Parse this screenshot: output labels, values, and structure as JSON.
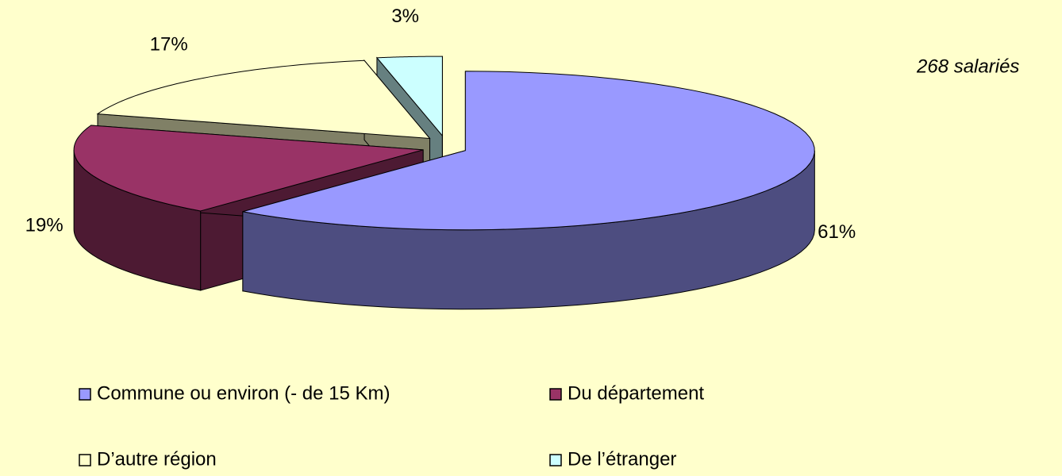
{
  "chart_data": {
    "type": "pie3d",
    "categories": [
      "Commune ou environ (- de 15 Km)",
      "Du département",
      "D’autre région",
      "De l’étranger"
    ],
    "values": [
      61,
      19,
      17,
      3
    ],
    "value_labels": [
      "61%",
      "19%",
      "17%",
      "3%"
    ],
    "colors": [
      "#9999ff",
      "#993366",
      "#ffffcc",
      "#ccffff"
    ],
    "annotation": "268 salariés",
    "legend": "bottom"
  }
}
